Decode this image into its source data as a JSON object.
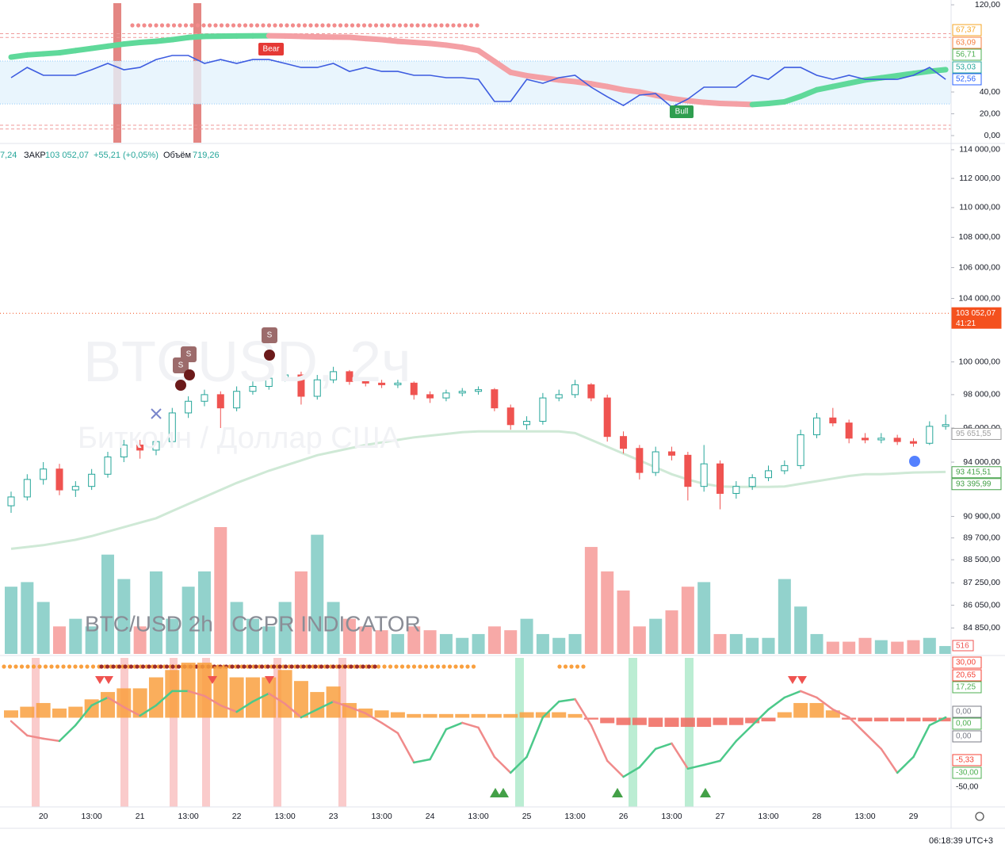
{
  "header": {
    "open_tail": "7,24",
    "close_word": "ЗАКР",
    "close": "103 052,07",
    "change": "+55,21 (+0,05%)",
    "volume_word": "Объём",
    "volume": "719,26"
  },
  "watermark": {
    "symbol": "BTCUSD, 2ч",
    "name": "Биткоин / Доллар США",
    "indicator": "BTC/USD 2h   CCPR INDICATOR"
  },
  "signals": {
    "sell": "S",
    "bear": "Bear",
    "bull": "Bull"
  },
  "clock": "06:18:39 UTC+3",
  "chart_data": [
    {
      "type": "candlestick",
      "log": true,
      "ylim": [
        83500,
        114500
      ],
      "up_color": "#26a69a",
      "down_color": "#ef5350",
      "categories": [
        null,
        null,
        "20",
        null,
        null,
        "13:00",
        null,
        null,
        "21",
        null,
        null,
        "13:00",
        null,
        null,
        "22",
        null,
        null,
        "13:00",
        null,
        null,
        "23",
        null,
        null,
        "13:00",
        null,
        null,
        "24",
        null,
        null,
        "13:00",
        null,
        null,
        "25",
        null,
        null,
        "13:00",
        null,
        null,
        "26",
        null,
        null,
        "13:00",
        null,
        null,
        "27",
        null,
        null,
        "13:00",
        null,
        null,
        "28",
        null,
        null,
        "13:00",
        null,
        null,
        "29",
        null,
        null
      ],
      "ohlc": [
        [
          91500,
          92300,
          91100,
          92000
        ],
        [
          92000,
          93300,
          91800,
          93000
        ],
        [
          93000,
          94000,
          92700,
          93600
        ],
        [
          93600,
          93900,
          92100,
          92400
        ],
        [
          92400,
          92900,
          92000,
          92600
        ],
        [
          92600,
          93600,
          92400,
          93300
        ],
        [
          93300,
          94600,
          93100,
          94300
        ],
        [
          94300,
          95300,
          94000,
          95000
        ],
        [
          95000,
          95300,
          94200,
          94700
        ],
        [
          94700,
          95500,
          94400,
          95200
        ],
        [
          95200,
          97200,
          95000,
          96900
        ],
        [
          96900,
          97900,
          96600,
          97600
        ],
        [
          97600,
          98300,
          97300,
          98000
        ],
        [
          98000,
          98200,
          96000,
          97200
        ],
        [
          97200,
          98500,
          97000,
          98200
        ],
        [
          98200,
          98800,
          98000,
          98500
        ],
        [
          98500,
          99300,
          98300,
          99000
        ],
        [
          99000,
          99500,
          98800,
          99200
        ],
        [
          99200,
          99400,
          97400,
          97900
        ],
        [
          97900,
          99200,
          97700,
          98900
        ],
        [
          98900,
          99700,
          98700,
          99400
        ],
        [
          99400,
          99500,
          98600,
          98800
        ],
        [
          98800,
          99000,
          98500,
          98700
        ],
        [
          98700,
          98900,
          98400,
          98600
        ],
        [
          98600,
          98900,
          98400,
          98700
        ],
        [
          98700,
          98800,
          97700,
          98000
        ],
        [
          98000,
          98200,
          97500,
          97800
        ],
        [
          97800,
          98300,
          97600,
          98100
        ],
        [
          98100,
          98400,
          97900,
          98200
        ],
        [
          98200,
          98500,
          98000,
          98300
        ],
        [
          98300,
          98400,
          97000,
          97200
        ],
        [
          97200,
          97400,
          95900,
          96200
        ],
        [
          96200,
          96700,
          95900,
          96400
        ],
        [
          96400,
          98100,
          96200,
          97800
        ],
        [
          97800,
          98300,
          97600,
          98000
        ],
        [
          98000,
          98900,
          97800,
          98600
        ],
        [
          98600,
          98700,
          97600,
          97800
        ],
        [
          97800,
          98000,
          95200,
          95500
        ],
        [
          95500,
          95800,
          94500,
          94800
        ],
        [
          94800,
          95000,
          93000,
          93400
        ],
        [
          93400,
          94900,
          93200,
          94600
        ],
        [
          94600,
          94900,
          94100,
          94400
        ],
        [
          94400,
          94600,
          91800,
          92600
        ],
        [
          92600,
          95000,
          92300,
          93900
        ],
        [
          93900,
          94100,
          91300,
          92200
        ],
        [
          92200,
          92900,
          91900,
          92600
        ],
        [
          92600,
          93300,
          92400,
          93100
        ],
        [
          93100,
          93800,
          92900,
          93500
        ],
        [
          93500,
          94100,
          93300,
          93800
        ],
        [
          93800,
          95900,
          93600,
          95600
        ],
        [
          95600,
          96900,
          95400,
          96600
        ],
        [
          96600,
          97200,
          96100,
          96300
        ],
        [
          96300,
          96500,
          95100,
          95400
        ],
        [
          95400,
          95700,
          95100,
          95300
        ],
        [
          95300,
          95700,
          95100,
          95400
        ],
        [
          95400,
          95600,
          95000,
          95200
        ],
        [
          95200,
          95400,
          94900,
          95100
        ],
        [
          95100,
          96400,
          95000,
          96100
        ],
        [
          96100,
          96800,
          95900,
          96200
        ]
      ],
      "ma": {
        "color": "#cfe9d6",
        "values": [
          89100,
          89200,
          89300,
          89450,
          89600,
          89800,
          90050,
          90300,
          90550,
          90800,
          91200,
          91600,
          92000,
          92400,
          92800,
          93150,
          93500,
          93800,
          94100,
          94400,
          94600,
          94800,
          95000,
          95150,
          95300,
          95450,
          95550,
          95650,
          95750,
          95800,
          95800,
          95800,
          95800,
          95800,
          95800,
          95700,
          95300,
          94900,
          94500,
          94100,
          93700,
          93300,
          93000,
          92750,
          92600,
          92570,
          92570,
          92570,
          92600,
          92750,
          92900,
          93050,
          93200,
          93300,
          93300,
          93350,
          93400,
          93420,
          93430
        ]
      },
      "volume": [
        4400,
        4700,
        3400,
        1800,
        2300,
        1800,
        6500,
        4900,
        1800,
        5400,
        2300,
        4400,
        5400,
        8300,
        3400,
        2300,
        1800,
        3400,
        5400,
        7800,
        3400,
        2300,
        1800,
        1550,
        1300,
        1800,
        1550,
        1300,
        1050,
        1300,
        1800,
        1550,
        2300,
        1300,
        1050,
        1300,
        7000,
        5400,
        4150,
        1800,
        2300,
        2850,
        4400,
        4700,
        1300,
        1300,
        1050,
        1050,
        4900,
        3100,
        1300,
        800,
        800,
        1050,
        900,
        800,
        900,
        1050,
        516
      ],
      "vlim": [
        0,
        8300
      ],
      "yticks": [
        {
          "value": 114000,
          "label": "114 000,00"
        },
        {
          "value": 112000,
          "label": "112 000,00"
        },
        {
          "value": 110000,
          "label": "110 000,00"
        },
        {
          "value": 108000,
          "label": "108 000,00"
        },
        {
          "value": 106000,
          "label": "106 000,00"
        },
        {
          "value": 104000,
          "label": "104 000,00"
        },
        {
          "value": 100000,
          "label": "100 000,00"
        },
        {
          "value": 98000,
          "label": "98 000,00"
        },
        {
          "value": 96000,
          "label": "96 000,00"
        },
        {
          "value": 94000,
          "label": "94 000,00"
        },
        {
          "value": 90900,
          "label": "90 900,00"
        },
        {
          "value": 89700,
          "label": "89 700,00"
        },
        {
          "value": 88500,
          "label": "88 500,00"
        },
        {
          "value": 87250,
          "label": "87 250,00"
        },
        {
          "value": 86050,
          "label": "86 050,00"
        },
        {
          "value": 84850,
          "label": "84 850,00"
        }
      ],
      "price_tags": [
        {
          "value": 103052.07,
          "label": "103 052,07",
          "color": "#f4511e",
          "filled": true,
          "sub": "41:21"
        },
        {
          "value": 95651.55,
          "label": "95 651,55",
          "color": "#9e9e9e"
        },
        {
          "value": 93415.51,
          "label": "93 415,51",
          "color": "#43a047"
        },
        {
          "value": 93395.99,
          "label": "93 395,99",
          "color": "#43a047"
        }
      ]
    },
    {
      "type": "line",
      "ylim": [
        -6.5,
        124.4
      ],
      "band": [
        29,
        68.4
      ],
      "levels": [
        93.5,
        90,
        9.5,
        6
      ],
      "yticks": [
        {
          "value": 120,
          "label": "120,00"
        },
        {
          "value": 40,
          "label": "40,00"
        },
        {
          "value": 20,
          "label": "20,00"
        },
        {
          "value": 0,
          "label": "0,00"
        }
      ],
      "series": [
        {
          "color": [
            "#5fd99a",
            "#f4a0a5"
          ],
          "values": [
            72,
            74,
            75,
            76,
            78,
            80,
            82,
            84,
            85.5,
            86.5,
            88,
            90,
            91,
            91.2,
            91.4,
            91.5,
            91.6,
            91.4,
            91,
            90.6,
            90.4,
            90.2,
            89,
            88,
            86.5,
            85.5,
            84.5,
            83,
            81,
            78,
            68,
            58,
            55,
            53,
            51,
            49.5,
            47.5,
            45,
            42,
            40,
            37,
            34,
            32,
            30.5,
            29.5,
            29,
            28.5,
            29.5,
            31,
            36,
            42,
            45,
            48,
            51,
            53,
            55,
            57,
            59,
            60.5
          ]
        },
        {
          "color": "#3d5ce0",
          "values": [
            53.1,
            62.5,
            55.3,
            55.3,
            55.3,
            60.4,
            66.2,
            60.4,
            62.5,
            69.8,
            73.5,
            73.5,
            66.2,
            69.8,
            66.2,
            69.8,
            69.8,
            66.2,
            62.5,
            62.5,
            66.2,
            58.9,
            62.5,
            58.9,
            58.9,
            55.3,
            55.3,
            53.1,
            53.1,
            51.6,
            31.3,
            31.3,
            51.6,
            48,
            53.1,
            55.3,
            44.4,
            35.6,
            27.6,
            37.1,
            38.5,
            26.2,
            33.5,
            44.4,
            44.4,
            44.4,
            55.3,
            51.6,
            62.5,
            62.5,
            55.3,
            51.6,
            55.3,
            51.6,
            51.6,
            51.6,
            55.3,
            62.5,
            51.6
          ]
        }
      ],
      "tags": [
        {
          "label": "67,37",
          "color": "#f5a623"
        },
        {
          "label": "63,09",
          "color": "#f57c3c"
        },
        {
          "label": "56,71",
          "color": "#4caf50"
        },
        {
          "label": "53,03",
          "color": "#26a69a"
        },
        {
          "label": "52,56",
          "color": "#2962ff"
        }
      ]
    },
    {
      "type": "line",
      "ylim": [
        -48.6,
        32.6
      ],
      "pos_color": "#f9a03f",
      "neg_color": "#f0675d",
      "histogram": [
        4,
        6,
        8,
        5,
        6,
        10,
        14,
        16,
        16,
        22,
        26,
        30,
        30,
        28,
        22,
        22,
        22,
        26,
        20,
        14,
        17,
        8,
        5,
        4,
        3,
        2,
        2,
        2,
        2,
        2,
        2,
        2,
        3,
        3,
        3,
        2,
        -1,
        -3,
        -4,
        -4,
        -5,
        -5,
        -5,
        -5,
        -4,
        -4,
        -3,
        -2,
        3,
        8,
        8,
        4,
        -1,
        -2,
        -2,
        -2,
        -2,
        -2,
        -2
      ],
      "series": [
        {
          "color": [
            "#4cc98a",
            "#f08a8a"
          ],
          "values": [
            -1.9,
            -9.7,
            -11.4,
            -12.7,
            -4.1,
            6.7,
            11,
            5.8,
            1.1,
            6.7,
            14.5,
            14.5,
            11.9,
            6.7,
            3.2,
            8.8,
            13.2,
            7.6,
            0.2,
            4.5,
            8.8,
            5.8,
            2.4,
            -2.8,
            -8.4,
            -24.4,
            -22.7,
            -6.3,
            -2.8,
            -5.4,
            -21.4,
            -30,
            -21.4,
            0.2,
            8.8,
            10.1,
            -4.1,
            -23.5,
            -32.2,
            -27,
            -17,
            -14,
            -27.8,
            -25.7,
            -23.5,
            -12.7,
            -4.1,
            4.5,
            11,
            14.5,
            11,
            4.5,
            0.2,
            -8.4,
            -17,
            -30,
            -21.4,
            -4.1,
            0.2
          ]
        }
      ],
      "tags": [
        {
          "label": "30,00",
          "color": "#f44336"
        },
        {
          "label": "20,65",
          "color": "#f44336"
        },
        {
          "label": "17,25",
          "color": "#4caf50"
        },
        {
          "label": "0,00",
          "color": "#787b86"
        },
        {
          "label": "0,00",
          "color": "#4caf50"
        },
        {
          "label": "0,00",
          "color": "#787b86"
        },
        {
          "label": "-5,33",
          "color": "#f44336"
        },
        {
          "label": "-30,00",
          "color": "#4caf50"
        },
        {
          "label": "-50,00",
          "color": "none"
        }
      ]
    }
  ]
}
